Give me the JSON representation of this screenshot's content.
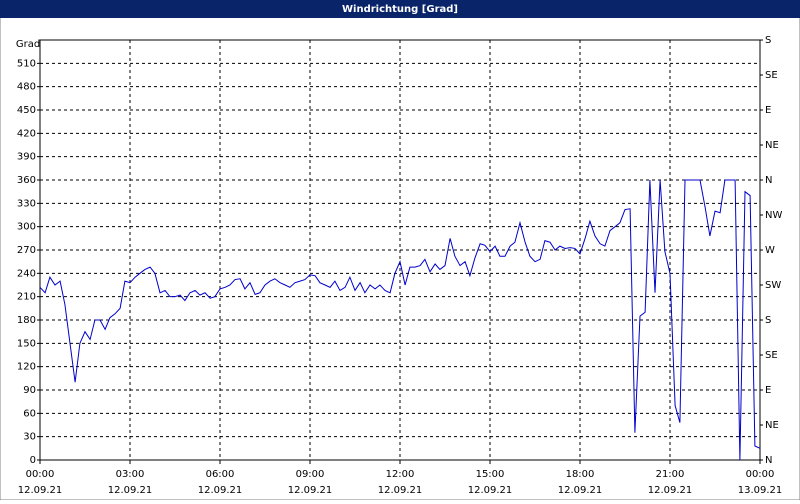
{
  "chart_data": {
    "type": "line",
    "title": "Windrichtung [Grad]",
    "y_label": "Grad",
    "color": "#0000cc",
    "grid": true,
    "xlim": [
      0,
      24
    ],
    "xticks": [
      {
        "value": 0,
        "label": "00:00"
      },
      {
        "value": 3,
        "label": "03:00"
      },
      {
        "value": 6,
        "label": "06:00"
      },
      {
        "value": 9,
        "label": "09:00"
      },
      {
        "value": 12,
        "label": "12:00"
      },
      {
        "value": 15,
        "label": "15:00"
      },
      {
        "value": 18,
        "label": "18:00"
      },
      {
        "value": 21,
        "label": "21:00"
      },
      {
        "value": 24,
        "label": "00:00"
      }
    ],
    "xtick_dates": [
      "12.09.21",
      "12.09.21",
      "12.09.21",
      "12.09.21",
      "12.09.21",
      "12.09.21",
      "12.09.21",
      "12.09.21",
      "13.09.21"
    ],
    "ylim": [
      0,
      540
    ],
    "yticks": [
      0,
      30,
      60,
      90,
      120,
      150,
      180,
      210,
      240,
      270,
      300,
      330,
      360,
      390,
      420,
      450,
      480,
      510
    ],
    "y2lim": [
      0,
      540
    ],
    "y2ticks": [
      {
        "value": 0,
        "label": "N"
      },
      {
        "value": 45,
        "label": "NE"
      },
      {
        "value": 90,
        "label": "E"
      },
      {
        "value": 135,
        "label": "SE"
      },
      {
        "value": 180,
        "label": "S"
      },
      {
        "value": 225,
        "label": "SW"
      },
      {
        "value": 270,
        "label": "W"
      },
      {
        "value": 315,
        "label": "NW"
      },
      {
        "value": 360,
        "label": "N"
      },
      {
        "value": 405,
        "label": "NE"
      },
      {
        "value": 450,
        "label": "E"
      },
      {
        "value": 495,
        "label": "SE"
      },
      {
        "value": 540,
        "label": "S"
      }
    ],
    "x": [
      0,
      0.17,
      0.33,
      0.5,
      0.67,
      0.83,
      1,
      1.17,
      1.33,
      1.5,
      1.67,
      1.83,
      2,
      2.17,
      2.33,
      2.5,
      2.67,
      2.83,
      3,
      3.17,
      3.33,
      3.5,
      3.67,
      3.83,
      4,
      4.17,
      4.33,
      4.5,
      4.67,
      4.83,
      5,
      5.17,
      5.33,
      5.5,
      5.67,
      5.83,
      6,
      6.17,
      6.33,
      6.5,
      6.67,
      6.83,
      7,
      7.17,
      7.33,
      7.5,
      7.67,
      7.83,
      8,
      8.17,
      8.33,
      8.5,
      8.67,
      8.83,
      9,
      9.17,
      9.33,
      9.5,
      9.67,
      9.83,
      10,
      10.17,
      10.33,
      10.5,
      10.67,
      10.83,
      11,
      11.17,
      11.33,
      11.5,
      11.67,
      11.83,
      12,
      12.17,
      12.33,
      12.5,
      12.67,
      12.83,
      13,
      13.17,
      13.33,
      13.5,
      13.67,
      13.83,
      14,
      14.17,
      14.33,
      14.5,
      14.67,
      14.83,
      15,
      15.17,
      15.33,
      15.5,
      15.67,
      15.83,
      16,
      16.17,
      16.33,
      16.5,
      16.67,
      16.83,
      17,
      17.17,
      17.33,
      17.5,
      17.67,
      17.83,
      18,
      18.17,
      18.33,
      18.5,
      18.67,
      18.83,
      19,
      19.17,
      19.33,
      19.5,
      19.67,
      19.83,
      20,
      20.17,
      20.33,
      20.5,
      20.67,
      20.83,
      21,
      21.17,
      21.33,
      21.5,
      21.67,
      21.83,
      22,
      22.17,
      22.33,
      22.5,
      22.67,
      22.83,
      23,
      23.17,
      23.33,
      23.5,
      23.67,
      23.83,
      24
    ],
    "values": [
      222,
      215,
      235,
      225,
      230,
      200,
      150,
      100,
      150,
      165,
      155,
      180,
      180,
      168,
      183,
      188,
      195,
      230,
      228,
      235,
      240,
      245,
      248,
      240,
      215,
      218,
      210,
      210,
      212,
      205,
      215,
      218,
      212,
      215,
      208,
      210,
      220,
      222,
      225,
      232,
      233,
      220,
      228,
      213,
      215,
      225,
      230,
      233,
      228,
      225,
      222,
      228,
      230,
      232,
      238,
      237,
      228,
      225,
      222,
      230,
      218,
      222,
      235,
      218,
      228,
      215,
      225,
      220,
      225,
      218,
      215,
      240,
      255,
      225,
      248,
      248,
      250,
      258,
      242,
      252,
      245,
      250,
      285,
      262,
      250,
      255,
      237,
      260,
      278,
      276,
      268,
      275,
      262,
      262,
      275,
      280,
      305,
      280,
      262,
      255,
      258,
      282,
      280,
      270,
      275,
      272,
      273,
      272,
      265,
      285,
      307,
      288,
      278,
      275,
      295,
      300,
      305,
      322,
      323,
      35,
      185,
      190,
      360,
      215,
      360,
      268,
      240,
      70,
      48,
      360,
      360,
      360,
      360,
      325,
      288,
      320,
      318,
      360,
      360,
      360,
      0,
      345,
      340,
      18,
      15
    ]
  }
}
